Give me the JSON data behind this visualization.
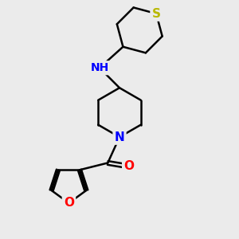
{
  "background_color": "#ebebeb",
  "bond_color": "#000000",
  "bond_width": 1.8,
  "atom_colors": {
    "O": "#ff0000",
    "N": "#0000ff",
    "S": "#b8b800",
    "NH_color": "#4a8f8f",
    "C": "#000000"
  },
  "font_size": 11,
  "figsize": [
    3.0,
    3.0
  ],
  "dpi": 100,
  "xlim": [
    0,
    10
  ],
  "ylim": [
    0,
    10
  ]
}
